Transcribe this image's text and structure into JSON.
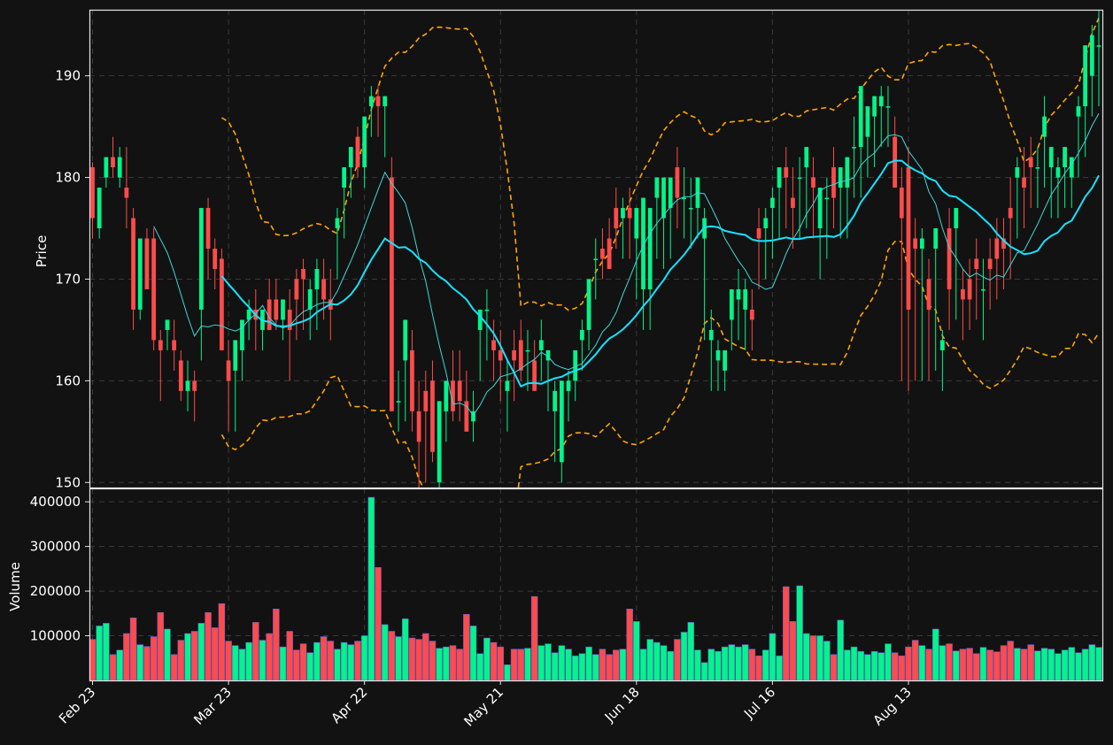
{
  "chart_data": {
    "type": "candlestick",
    "ylabel": "Price",
    "volume_ylabel": "Volume",
    "price_ylim": [
      149.5,
      196.5
    ],
    "price_yticks": [
      150,
      160,
      170,
      180,
      190
    ],
    "volume_ylim": [
      0,
      430000
    ],
    "volume_yticks": [
      100000,
      200000,
      300000,
      400000
    ],
    "x_ticks": [
      {
        "label": "Feb 23",
        "index": 0
      },
      {
        "label": "Mar 23",
        "index": 20
      },
      {
        "label": "Apr 22",
        "index": 40
      },
      {
        "label": "May 21",
        "index": 60
      },
      {
        "label": "Jun 18",
        "index": 80
      },
      {
        "label": "Jul 16",
        "index": 100
      },
      {
        "label": "Aug 13",
        "index": 120
      }
    ],
    "grid": true,
    "colors": {
      "up": "#00f58a",
      "down": "#ff4b4b",
      "ma_fast": "#3fd9d9",
      "ma_slow": "#16e3ff",
      "bands": "#ffa500",
      "background": "#121212"
    },
    "candles": {
      "open": [
        181,
        175,
        180,
        182,
        180,
        179,
        176,
        167,
        174,
        174,
        164,
        165,
        164,
        162,
        159,
        160,
        167,
        177,
        173,
        172,
        162,
        161,
        163,
        166,
        167,
        165,
        168,
        168,
        166,
        167,
        170,
        171,
        167,
        169,
        170,
        168,
        175,
        179,
        181,
        184,
        181,
        187,
        188,
        187,
        180,
        158,
        162,
        163,
        157,
        159,
        160,
        150,
        157,
        160,
        160,
        158,
        156,
        165,
        167,
        164,
        163,
        159,
        163,
        164,
        163,
        162,
        163,
        162,
        157,
        152,
        159,
        160,
        164,
        165,
        172,
        173,
        174,
        177,
        176,
        177,
        174,
        169,
        169,
        178,
        176,
        177,
        181,
        178,
        177,
        177,
        174,
        164,
        162,
        161,
        166,
        168,
        167,
        167,
        175,
        175,
        177,
        179,
        181,
        178,
        180,
        181,
        180,
        175,
        178,
        181,
        179,
        179,
        183,
        183,
        184,
        186,
        187,
        187,
        184,
        179,
        181,
        174,
        173,
        170,
        173,
        163,
        175,
        175,
        169,
        170,
        172,
        169,
        172,
        174,
        174,
        177,
        180,
        180,
        182,
        181,
        184,
        181,
        180,
        181,
        180,
        186,
        187,
        190,
        193
      ],
      "high": [
        181.5,
        176,
        182,
        184,
        183,
        183,
        177,
        170,
        175,
        175,
        165,
        166,
        166,
        163,
        162,
        161,
        169,
        178,
        174,
        173,
        164,
        163,
        165,
        168,
        169,
        167,
        170,
        170,
        167,
        169,
        171,
        172,
        170,
        172,
        172,
        171,
        177,
        181,
        183,
        185,
        184,
        189,
        189,
        188,
        182,
        161,
        164,
        165,
        160,
        161,
        162,
        153,
        159,
        163,
        163,
        161,
        159,
        167,
        169,
        166,
        165,
        162,
        165,
        166,
        165,
        164,
        166,
        163,
        160,
        155,
        161,
        162,
        166,
        168,
        174,
        175,
        176,
        179,
        178,
        179,
        176,
        172,
        172,
        180,
        178,
        180,
        183,
        181,
        180,
        179,
        177,
        167,
        164,
        163,
        168,
        171,
        170,
        169,
        177,
        177,
        179,
        181,
        183,
        181,
        182,
        183,
        182,
        178,
        180,
        183,
        181,
        182,
        186,
        186,
        186,
        188,
        189,
        189,
        186,
        181,
        183,
        176,
        175,
        172,
        175,
        165,
        177,
        177,
        171,
        172,
        174,
        172,
        174,
        176,
        176,
        180,
        182,
        183,
        184,
        183,
        188,
        183,
        182,
        183,
        182,
        188,
        190,
        195,
        197
      ],
      "low": [
        174,
        174,
        179,
        180,
        179,
        175,
        165,
        166,
        169,
        163,
        158,
        163,
        161,
        158,
        157,
        156,
        162,
        170,
        169,
        163,
        155,
        155,
        160,
        164,
        163,
        163,
        165,
        165,
        164,
        160,
        164,
        165,
        164,
        165,
        166,
        164,
        170,
        174,
        178,
        180,
        179,
        184,
        184,
        182,
        157,
        155,
        156,
        155,
        149,
        150,
        152,
        149,
        154,
        156,
        156,
        155,
        154,
        160,
        162,
        160,
        158,
        155,
        158,
        160,
        159,
        159,
        160,
        157,
        152,
        150,
        156,
        158,
        161,
        163,
        168,
        170,
        171,
        173,
        172,
        172,
        168,
        165,
        165,
        172,
        171,
        172,
        175,
        174,
        173,
        174,
        164,
        159,
        159,
        159,
        163,
        164,
        163,
        163,
        169,
        170,
        172,
        174,
        175,
        173,
        174,
        175,
        174,
        170,
        172,
        175,
        174,
        174,
        178,
        178,
        180,
        181,
        183,
        183,
        179,
        160,
        159,
        160,
        160,
        160,
        161,
        159,
        165,
        166,
        164,
        165,
        166,
        164,
        167,
        168,
        169,
        170,
        174,
        175,
        177,
        177,
        179,
        176,
        176,
        177,
        177,
        180,
        182,
        186,
        187
      ],
      "close": [
        176,
        179,
        182,
        181,
        182,
        178,
        167,
        174,
        169,
        164,
        163,
        166,
        163,
        159,
        160,
        159,
        177,
        173,
        171,
        163,
        160,
        164,
        166,
        167,
        166,
        167,
        165,
        166,
        168,
        165,
        168,
        170,
        169,
        171,
        168,
        167,
        176,
        181,
        183,
        181,
        186,
        188,
        187,
        188,
        157,
        158,
        166,
        157,
        154,
        157,
        153,
        158,
        160,
        157,
        158,
        155,
        157,
        167,
        167,
        163,
        162,
        160,
        162,
        161,
        163,
        159,
        164,
        163,
        159,
        160,
        160,
        163,
        165,
        170,
        172,
        172,
        171,
        175,
        177,
        176,
        177,
        178,
        177,
        180,
        180,
        180,
        178,
        178,
        177,
        180,
        176,
        165,
        163,
        163,
        169,
        169,
        169,
        166,
        174,
        176,
        178,
        181,
        180,
        177,
        180,
        183,
        179,
        179,
        178,
        178,
        181,
        182,
        183,
        189,
        187,
        188,
        188,
        187,
        179,
        176,
        167,
        173,
        174,
        167,
        175,
        164,
        169,
        177,
        168,
        168,
        171,
        169,
        171,
        172,
        173,
        176,
        181,
        179,
        181,
        181,
        186,
        183,
        181,
        183,
        182,
        187,
        193,
        194,
        193
      ],
      "volume": [
        92000,
        122000,
        128000,
        58000,
        68000,
        105000,
        140000,
        80000,
        76000,
        98000,
        152000,
        115000,
        58000,
        90000,
        105000,
        110000,
        128000,
        152000,
        118000,
        172000,
        88000,
        78000,
        70000,
        85000,
        130000,
        90000,
        105000,
        160000,
        75000,
        110000,
        68000,
        82000,
        62000,
        85000,
        98000,
        88000,
        70000,
        85000,
        80000,
        88000,
        100000,
        410000,
        253000,
        125000,
        110000,
        98000,
        138000,
        95000,
        92000,
        105000,
        88000,
        72000,
        75000,
        78000,
        70000,
        148000,
        122000,
        60000,
        95000,
        85000,
        75000,
        35000,
        70000,
        70000,
        72000,
        188000,
        78000,
        82000,
        62000,
        78000,
        70000,
        55000,
        60000,
        75000,
        58000,
        70000,
        58000,
        68000,
        70000,
        160000,
        132000,
        70000,
        92000,
        85000,
        78000,
        65000,
        92000,
        108000,
        130000,
        68000,
        40000,
        70000,
        65000,
        75000,
        80000,
        75000,
        80000,
        70000,
        55000,
        68000,
        105000,
        55000,
        210000,
        132000,
        212000,
        105000,
        100000,
        100000,
        88000,
        58000,
        135000,
        68000,
        75000,
        65000,
        58000,
        65000,
        62000,
        82000,
        62000,
        55000,
        75000,
        90000,
        78000,
        70000,
        115000,
        78000,
        82000,
        66000,
        70000,
        72000,
        60000,
        74000,
        68000,
        64000,
        78000,
        88000,
        72000,
        70000,
        80000,
        66000,
        72000,
        70000,
        60000,
        68000,
        74000,
        62000,
        70000,
        80000,
        74000
      ]
    }
  }
}
